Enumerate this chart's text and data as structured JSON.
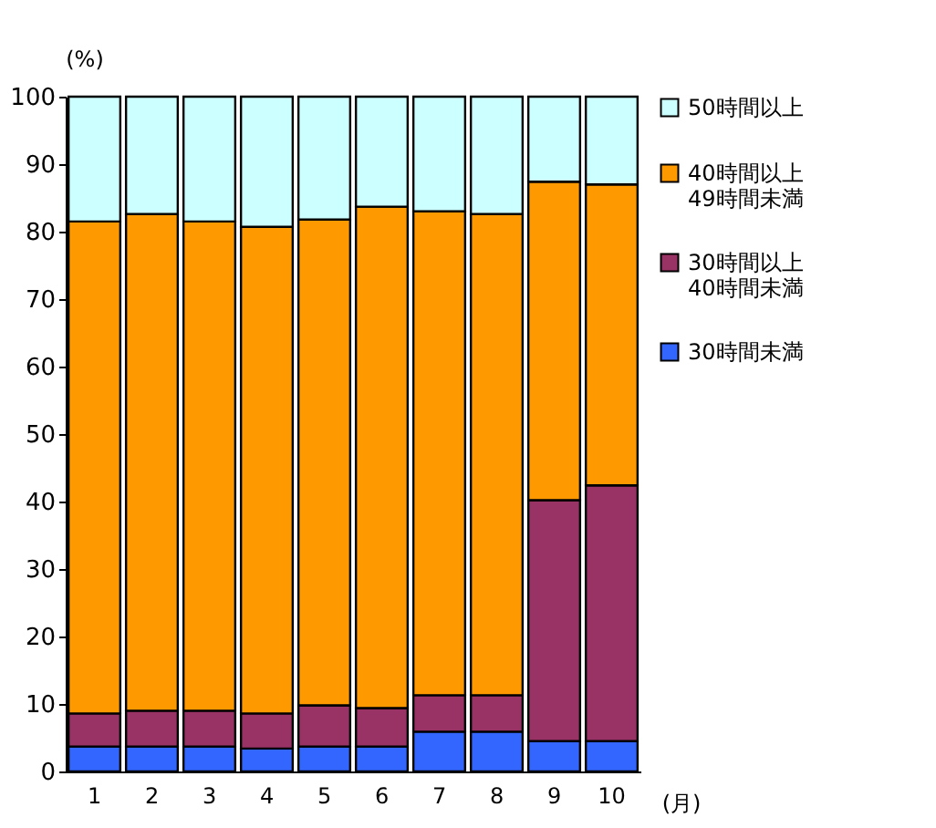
{
  "chart_data": {
    "type": "bar",
    "stacked": true,
    "xlabel": "(月)",
    "ylabel": "(%)",
    "categories": [
      "1",
      "2",
      "3",
      "4",
      "5",
      "6",
      "7",
      "8",
      "9",
      "10"
    ],
    "series": [
      {
        "name": "30時間未満",
        "color": "#3366ff",
        "values": [
          3.7,
          3.7,
          3.7,
          3.4,
          3.7,
          3.7,
          5.9,
          5.9,
          4.5,
          4.5
        ]
      },
      {
        "name": "30時間以上40時間未満",
        "color": "#993366",
        "values": [
          4.9,
          5.3,
          5.3,
          5.2,
          6.1,
          5.7,
          5.4,
          5.4,
          35.7,
          37.9
        ]
      },
      {
        "name": "40時間以上49時間未満",
        "color": "#ff9900",
        "values": [
          72.9,
          73.6,
          72.5,
          72.1,
          72.0,
          74.3,
          71.7,
          71.3,
          47.2,
          44.6
        ]
      },
      {
        "name": "50時間以上",
        "color": "#ccffff",
        "values": [
          18.5,
          17.4,
          18.5,
          19.3,
          18.2,
          16.3,
          17.0,
          17.4,
          12.6,
          13.0
        ]
      }
    ],
    "ylim": [
      0,
      100
    ],
    "yticks": [
      0,
      10,
      20,
      30,
      40,
      50,
      60,
      70,
      80,
      90,
      100
    ],
    "grid": false,
    "legend": "right"
  }
}
